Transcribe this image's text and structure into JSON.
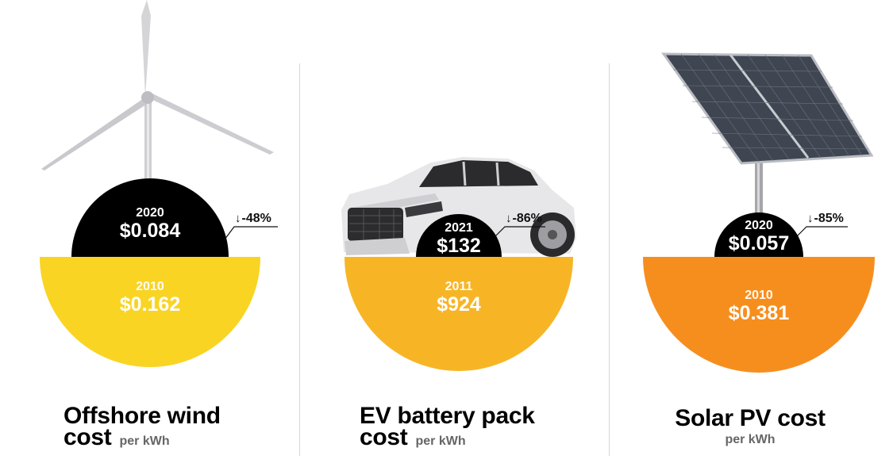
{
  "panels": [
    {
      "id": "wind",
      "title_line1": "Offshore wind",
      "title_line2": "cost",
      "unit": "per kWh",
      "recent_year": "2020",
      "recent_value": "$0.084",
      "base_year": "2010",
      "base_value": "$0.162",
      "change": "-48%",
      "base_color": "#f9d423",
      "illustration": "wind-turbine-icon"
    },
    {
      "id": "ev",
      "title_line1": "EV battery pack",
      "title_line2": "cost",
      "unit": "per kWh",
      "recent_year": "2021",
      "recent_value": "$132",
      "base_year": "2011",
      "base_value": "$924",
      "change": "-86%",
      "base_color": "#f7b526",
      "illustration": "car-icon"
    },
    {
      "id": "solar",
      "title_line1": "Solar PV cost",
      "unit": "per kWh",
      "recent_year": "2020",
      "recent_value": "$0.057",
      "base_year": "2010",
      "base_value": "$0.381",
      "change": "-85%",
      "base_color": "#f68e1e",
      "illustration": "solar-panel-icon"
    }
  ],
  "arrow_glyph": "↓"
}
